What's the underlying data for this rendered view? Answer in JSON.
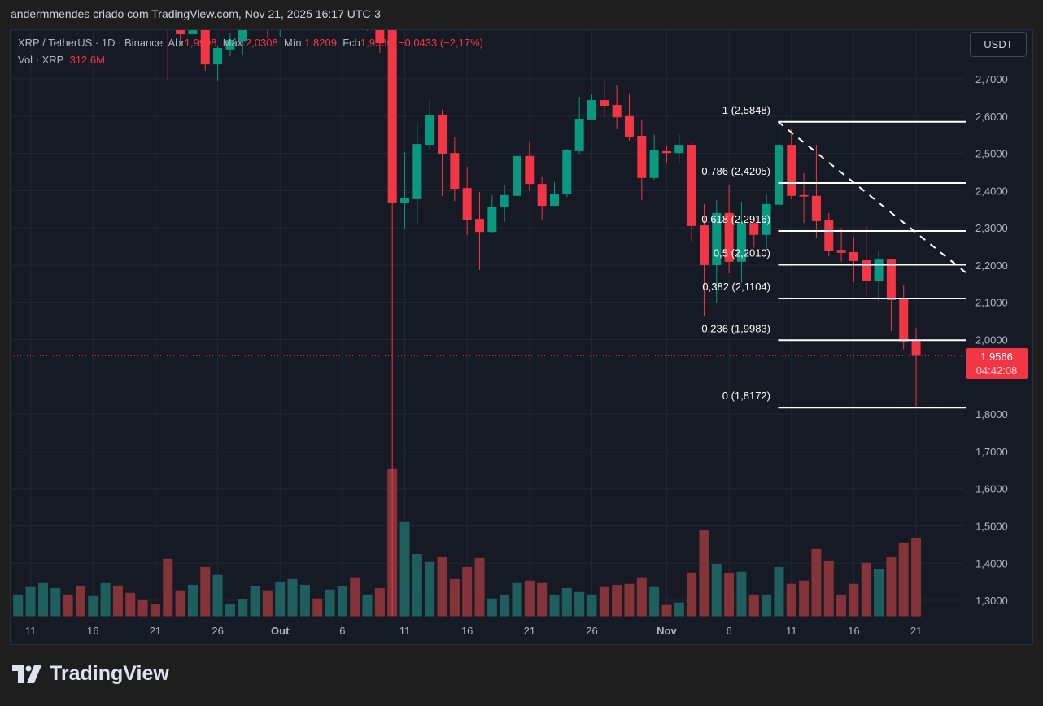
{
  "header": {
    "attribution": "andermmendes criado com TradingView.com, Nov 21, 2025 16:17 UTC-3"
  },
  "legend": {
    "symbol": "XRP / TetherUS · 1D · Binance",
    "open_label": "Abr",
    "open": "1,9998",
    "high_label": "Máx.",
    "high": "2,0308",
    "low_label": "Mín.",
    "low": "1,8209",
    "close_label": "Fch",
    "close": "1,9566",
    "change": "−0,0433 (−2,17%)",
    "volume_label": "Vol · XRP",
    "volume": "312,6M"
  },
  "currency_button": "USDT",
  "price_tag": {
    "price": "1,9566",
    "countdown": "04:42:08"
  },
  "brand": {
    "name": "TradingView"
  },
  "colors": {
    "up": "#089981",
    "down": "#f23645",
    "vol_up": "#1f5e5e",
    "vol_down": "#843338",
    "fib": "#ffffff",
    "background": "#161a25"
  },
  "chart_data": {
    "type": "candlestick",
    "symbol": "XRP / TetherUS",
    "interval": "1D",
    "exchange": "Binance",
    "ylim": [
      1.26,
      2.82
    ],
    "y_ticks": [
      "2,7000",
      "2,6000",
      "2,5000",
      "2,4000",
      "2,3000",
      "2,2000",
      "2,1000",
      "2,0000",
      "1,8000",
      "1,7000",
      "1,6000",
      "1,5000",
      "1,4000",
      "1,3000"
    ],
    "y_tick_values": [
      2.7,
      2.6,
      2.5,
      2.4,
      2.3,
      2.2,
      2.1,
      2.0,
      1.8,
      1.7,
      1.6,
      1.5,
      1.4,
      1.3
    ],
    "x_ticks": [
      {
        "label": "11",
        "date": "2025-09-11"
      },
      {
        "label": "16",
        "date": "2025-09-16"
      },
      {
        "label": "21",
        "date": "2025-09-21"
      },
      {
        "label": "26",
        "date": "2025-09-26"
      },
      {
        "label": "Out",
        "date": "2025-10-01",
        "bold": true
      },
      {
        "label": "6",
        "date": "2025-10-06"
      },
      {
        "label": "11",
        "date": "2025-10-11"
      },
      {
        "label": "16",
        "date": "2025-10-16"
      },
      {
        "label": "21",
        "date": "2025-10-21"
      },
      {
        "label": "26",
        "date": "2025-10-26"
      },
      {
        "label": "Nov",
        "date": "2025-11-01",
        "bold": true
      },
      {
        "label": "6",
        "date": "2025-11-06"
      },
      {
        "label": "11",
        "date": "2025-11-11"
      },
      {
        "label": "16",
        "date": "2025-11-16"
      },
      {
        "label": "21",
        "date": "2025-11-21"
      }
    ],
    "grid": true,
    "volume_unit": "M",
    "candles": [
      {
        "d": "2025-09-10",
        "o": null,
        "h": null,
        "l": null,
        "c": null,
        "up": true,
        "v": 87
      },
      {
        "d": "2025-09-11",
        "o": null,
        "h": null,
        "l": null,
        "c": null,
        "up": true,
        "v": 117
      },
      {
        "d": "2025-09-12",
        "o": null,
        "h": null,
        "l": null,
        "c": null,
        "up": true,
        "v": 133
      },
      {
        "d": "2025-09-13",
        "o": null,
        "h": null,
        "l": null,
        "c": null,
        "up": true,
        "v": 113
      },
      {
        "d": "2025-09-14",
        "o": null,
        "h": null,
        "l": null,
        "c": null,
        "up": false,
        "v": 87
      },
      {
        "d": "2025-09-15",
        "o": null,
        "h": null,
        "l": null,
        "c": null,
        "up": false,
        "v": 123
      },
      {
        "d": "2025-09-16",
        "o": null,
        "h": null,
        "l": null,
        "c": null,
        "up": true,
        "v": 81
      },
      {
        "d": "2025-09-17",
        "o": null,
        "h": null,
        "l": null,
        "c": null,
        "up": true,
        "v": 133
      },
      {
        "d": "2025-09-18",
        "o": null,
        "h": null,
        "l": null,
        "c": null,
        "up": false,
        "v": 123
      },
      {
        "d": "2025-09-19",
        "o": null,
        "h": null,
        "l": null,
        "c": null,
        "up": false,
        "v": 94
      },
      {
        "d": "2025-09-20",
        "o": null,
        "h": null,
        "l": null,
        "c": null,
        "up": false,
        "v": 64
      },
      {
        "d": "2025-09-21",
        "o": null,
        "h": null,
        "l": null,
        "c": null,
        "up": false,
        "v": 48
      },
      {
        "d": "2025-09-22",
        "o": null,
        "h": null,
        "l": 2.693,
        "c": null,
        "up": false,
        "v": 231
      },
      {
        "d": "2025-09-23",
        "o": null,
        "h": null,
        "l": 2.8,
        "c": 2.82,
        "up": false,
        "v": 104
      },
      {
        "d": "2025-09-24",
        "o": 2.82,
        "h": null,
        "l": 2.82,
        "c": null,
        "up": true,
        "v": 126
      },
      {
        "d": "2025-09-25",
        "o": null,
        "h": null,
        "l": 2.722,
        "c": 2.739,
        "up": false,
        "v": 198
      },
      {
        "d": "2025-09-26",
        "o": 2.739,
        "h": 2.79,
        "l": 2.696,
        "c": 2.783,
        "up": true,
        "v": 166
      },
      {
        "d": "2025-09-27",
        "o": 2.779,
        "h": 2.824,
        "l": 2.761,
        "c": 2.805,
        "up": true,
        "v": 48
      },
      {
        "d": "2025-09-28",
        "o": 2.8,
        "h": null,
        "l": 2.763,
        "c": null,
        "up": true,
        "v": 68
      },
      {
        "d": "2025-09-29",
        "o": null,
        "h": null,
        "l": null,
        "c": null,
        "up": true,
        "v": 120
      },
      {
        "d": "2025-09-30",
        "o": null,
        "h": null,
        "l": 2.809,
        "c": null,
        "up": false,
        "v": 104
      },
      {
        "d": "2025-10-01",
        "o": null,
        "h": null,
        "l": 2.814,
        "c": null,
        "up": true,
        "v": 139
      },
      {
        "d": "2025-10-02",
        "o": null,
        "h": null,
        "l": null,
        "c": null,
        "up": true,
        "v": 149
      },
      {
        "d": "2025-10-03",
        "o": null,
        "h": null,
        "l": null,
        "c": null,
        "up": true,
        "v": 126
      },
      {
        "d": "2025-10-04",
        "o": null,
        "h": null,
        "l": null,
        "c": null,
        "up": false,
        "v": 71
      },
      {
        "d": "2025-10-05",
        "o": null,
        "h": null,
        "l": null,
        "c": null,
        "up": true,
        "v": 107
      },
      {
        "d": "2025-10-06",
        "o": null,
        "h": null,
        "l": null,
        "c": null,
        "up": true,
        "v": 120
      },
      {
        "d": "2025-10-07",
        "o": null,
        "h": null,
        "l": null,
        "c": null,
        "up": false,
        "v": 153
      },
      {
        "d": "2025-10-08",
        "o": null,
        "h": null,
        "l": 2.829,
        "c": null,
        "up": true,
        "v": 87
      },
      {
        "d": "2025-10-09",
        "o": null,
        "h": null,
        "l": 2.77,
        "c": 2.796,
        "up": false,
        "v": 113
      },
      {
        "d": "2025-10-10",
        "o": null,
        "h": null,
        "l": 1.259,
        "c": 2.366,
        "up": false,
        "v": 590
      },
      {
        "d": "2025-10-11",
        "o": 2.366,
        "h": 2.503,
        "l": 2.297,
        "c": 2.379,
        "up": true,
        "v": 378
      },
      {
        "d": "2025-10-12",
        "o": 2.377,
        "h": 2.582,
        "l": 2.309,
        "c": 2.525,
        "up": true,
        "v": 250
      },
      {
        "d": "2025-10-13",
        "o": 2.523,
        "h": 2.643,
        "l": 2.51,
        "c": 2.602,
        "up": true,
        "v": 218
      },
      {
        "d": "2025-10-14",
        "o": 2.602,
        "h": 2.617,
        "l": 2.386,
        "c": 2.499,
        "up": false,
        "v": 237
      },
      {
        "d": "2025-10-15",
        "o": 2.501,
        "h": 2.545,
        "l": 2.372,
        "c": 2.405,
        "up": false,
        "v": 149
      },
      {
        "d": "2025-10-16",
        "o": 2.407,
        "h": 2.464,
        "l": 2.281,
        "c": 2.322,
        "up": false,
        "v": 198
      },
      {
        "d": "2025-10-17",
        "o": 2.324,
        "h": 2.396,
        "l": 2.187,
        "c": 2.289,
        "up": false,
        "v": 234
      },
      {
        "d": "2025-10-18",
        "o": 2.289,
        "h": 2.388,
        "l": 2.287,
        "c": 2.357,
        "up": true,
        "v": 71
      },
      {
        "d": "2025-10-19",
        "o": 2.355,
        "h": 2.416,
        "l": 2.316,
        "c": 2.388,
        "up": true,
        "v": 87
      },
      {
        "d": "2025-10-20",
        "o": 2.386,
        "h": 2.549,
        "l": 2.353,
        "c": 2.493,
        "up": true,
        "v": 133
      },
      {
        "d": "2025-10-21",
        "o": 2.493,
        "h": 2.53,
        "l": 2.399,
        "c": 2.418,
        "up": false,
        "v": 143
      },
      {
        "d": "2025-10-22",
        "o": 2.418,
        "h": 2.436,
        "l": 2.322,
        "c": 2.359,
        "up": false,
        "v": 133
      },
      {
        "d": "2025-10-23",
        "o": 2.359,
        "h": 2.423,
        "l": 2.359,
        "c": 2.392,
        "up": true,
        "v": 87
      },
      {
        "d": "2025-10-24",
        "o": 2.39,
        "h": 2.512,
        "l": 2.383,
        "c": 2.508,
        "up": true,
        "v": 113
      },
      {
        "d": "2025-10-25",
        "o": 2.506,
        "h": 2.652,
        "l": 2.499,
        "c": 2.593,
        "up": true,
        "v": 97
      },
      {
        "d": "2025-10-26",
        "o": 2.591,
        "h": 2.658,
        "l": 2.589,
        "c": 2.643,
        "up": true,
        "v": 87
      },
      {
        "d": "2025-10-27",
        "o": 2.643,
        "h": 2.693,
        "l": 2.597,
        "c": 2.628,
        "up": false,
        "v": 117
      },
      {
        "d": "2025-10-28",
        "o": 2.63,
        "h": 2.685,
        "l": 2.565,
        "c": 2.597,
        "up": false,
        "v": 126
      },
      {
        "d": "2025-10-29",
        "o": 2.6,
        "h": 2.661,
        "l": 2.534,
        "c": 2.545,
        "up": false,
        "v": 130
      },
      {
        "d": "2025-10-30",
        "o": 2.547,
        "h": 2.591,
        "l": 2.375,
        "c": 2.434,
        "up": false,
        "v": 153
      },
      {
        "d": "2025-10-31",
        "o": 2.434,
        "h": 2.551,
        "l": 2.429,
        "c": 2.508,
        "up": true,
        "v": 117
      },
      {
        "d": "2025-11-01",
        "o": 2.506,
        "h": 2.521,
        "l": 2.473,
        "c": 2.501,
        "up": false,
        "v": 45
      },
      {
        "d": "2025-11-02",
        "o": 2.501,
        "h": 2.551,
        "l": 2.475,
        "c": 2.523,
        "up": true,
        "v": 55
      },
      {
        "d": "2025-11-03",
        "o": 2.523,
        "h": 2.53,
        "l": 2.261,
        "c": 2.305,
        "up": false,
        "v": 175
      },
      {
        "d": "2025-11-04",
        "o": 2.307,
        "h": 2.364,
        "l": 2.064,
        "c": 2.2,
        "up": false,
        "v": 345
      },
      {
        "d": "2025-11-05",
        "o": 2.2,
        "h": 2.375,
        "l": 2.099,
        "c": 2.34,
        "up": true,
        "v": 208
      },
      {
        "d": "2025-11-06",
        "o": 2.34,
        "h": 2.414,
        "l": 2.178,
        "c": 2.209,
        "up": false,
        "v": 175
      },
      {
        "d": "2025-11-07",
        "o": 2.209,
        "h": 2.37,
        "l": 2.152,
        "c": 2.313,
        "up": true,
        "v": 179
      },
      {
        "d": "2025-11-08",
        "o": 2.313,
        "h": 2.313,
        "l": 2.247,
        "c": 2.281,
        "up": false,
        "v": 87
      },
      {
        "d": "2025-11-09",
        "o": 2.281,
        "h": 2.392,
        "l": 2.241,
        "c": 2.364,
        "up": true,
        "v": 87
      },
      {
        "d": "2025-11-10",
        "o": 2.362,
        "h": 2.5848,
        "l": 2.344,
        "c": 2.523,
        "up": true,
        "v": 198
      },
      {
        "d": "2025-11-11",
        "o": 2.523,
        "h": 2.567,
        "l": 2.377,
        "c": 2.386,
        "up": false,
        "v": 130
      },
      {
        "d": "2025-11-12",
        "o": 2.388,
        "h": 2.447,
        "l": 2.313,
        "c": 2.384,
        "up": false,
        "v": 143
      },
      {
        "d": "2025-11-13",
        "o": 2.386,
        "h": 2.523,
        "l": 2.272,
        "c": 2.318,
        "up": false,
        "v": 270
      },
      {
        "d": "2025-11-14",
        "o": 2.32,
        "h": 2.34,
        "l": 2.224,
        "c": 2.239,
        "up": false,
        "v": 221
      },
      {
        "d": "2025-11-15",
        "o": 2.241,
        "h": 2.3,
        "l": 2.209,
        "c": 2.233,
        "up": false,
        "v": 87
      },
      {
        "d": "2025-11-16",
        "o": 2.235,
        "h": 2.276,
        "l": 2.154,
        "c": 2.211,
        "up": false,
        "v": 130
      },
      {
        "d": "2025-11-17",
        "o": 2.213,
        "h": 2.305,
        "l": 2.113,
        "c": 2.158,
        "up": false,
        "v": 215
      },
      {
        "d": "2025-11-18",
        "o": 2.158,
        "h": 2.239,
        "l": 2.104,
        "c": 2.215,
        "up": true,
        "v": 188
      },
      {
        "d": "2025-11-19",
        "o": 2.215,
        "h": 2.217,
        "l": 2.023,
        "c": 2.106,
        "up": false,
        "v": 237
      },
      {
        "d": "2025-11-20",
        "o": 2.108,
        "h": 2.147,
        "l": 1.973,
        "c": 1.995,
        "up": false,
        "v": 296
      },
      {
        "d": "2025-11-21",
        "o": 1.9998,
        "h": 2.0308,
        "l": 1.8209,
        "c": 1.9566,
        "up": false,
        "v": 312.6
      }
    ],
    "fibonacci": {
      "start_date": "2025-11-10",
      "end_date": "2025-11-21",
      "levels": [
        {
          "ratio": 1,
          "price": 2.5848,
          "label": "1 (2,5848)"
        },
        {
          "ratio": 0.786,
          "price": 2.4205,
          "label": "0,786 (2,4205)"
        },
        {
          "ratio": 0.618,
          "price": 2.2916,
          "label": "0,618 (2,2916)"
        },
        {
          "ratio": 0.5,
          "price": 2.201,
          "label": "0,5 (2,2010)"
        },
        {
          "ratio": 0.382,
          "price": 2.1104,
          "label": "0,382 (2,1104)"
        },
        {
          "ratio": 0.236,
          "price": 1.9983,
          "label": "0,236 (1,9983)"
        },
        {
          "ratio": 0,
          "price": 1.8172,
          "label": "0 (1,8172)"
        }
      ],
      "trendline": {
        "from_price": 2.5848,
        "to_price": 2.18
      }
    },
    "last_price": 1.9566
  }
}
